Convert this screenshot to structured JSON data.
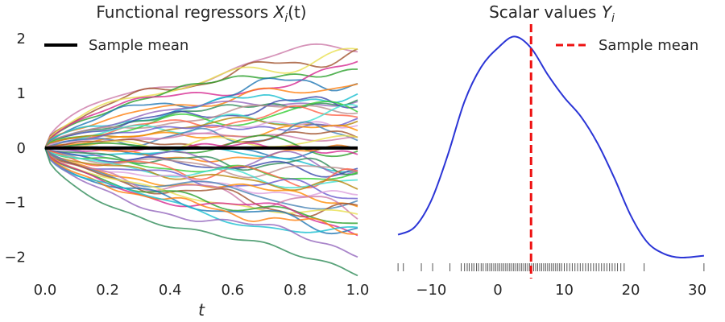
{
  "chart_data": [
    {
      "type": "line",
      "title": "Functional regressors X_i(t)",
      "title_parts": {
        "pre": "Functional regressors ",
        "var": "X",
        "sub": "i",
        "post": "(t)"
      },
      "xlabel": "t",
      "ylabel": "",
      "xlim": [
        0.0,
        1.0
      ],
      "ylim": [
        -2.45,
        2.15
      ],
      "x_ticks": [
        0.0,
        0.2,
        0.4,
        0.6,
        0.8,
        1.0
      ],
      "x_tick_labels": [
        "0.0",
        "0.2",
        "0.4",
        "0.6",
        "0.8",
        "1.0"
      ],
      "y_ticks": [
        -2,
        -1,
        0,
        1,
        2
      ],
      "y_tick_labels": [
        "−2",
        "−1",
        "0",
        "1",
        "2"
      ],
      "grid": false,
      "legend": {
        "entries": [
          "Sample mean"
        ],
        "placement": "top-left"
      },
      "mean_series": {
        "name": "Sample mean",
        "color": "#000000",
        "x": [
          0.0,
          1.0
        ],
        "y": [
          0.0,
          0.0
        ]
      },
      "series_count": 50,
      "series_end_values": [
        1.88,
        1.75,
        1.72,
        1.55,
        1.45,
        1.3,
        1.18,
        1.05,
        0.98,
        0.92,
        0.88,
        0.8,
        0.72,
        0.68,
        0.62,
        0.55,
        0.5,
        0.42,
        0.35,
        0.3,
        0.25,
        0.18,
        0.12,
        0.05,
        -0.02,
        -0.08,
        -0.15,
        -0.22,
        -0.28,
        -0.35,
        -0.42,
        -0.48,
        -0.55,
        -0.6,
        -0.68,
        -0.75,
        -0.82,
        -0.9,
        -0.98,
        -1.05,
        -1.12,
        -1.2,
        -1.28,
        -1.35,
        -1.42,
        -1.48,
        -1.52,
        -1.62,
        -1.82,
        -2.22
      ],
      "palette": [
        "#cc79a7",
        "#a0522d",
        "#e8e050",
        "#2ca02c",
        "#d62790",
        "#1f77b4",
        "#ff7f0e",
        "#17becf",
        "#9467bd",
        "#2e8b57",
        "#3949ab",
        "#bc8f8f",
        "#32cd32",
        "#ff6347",
        "#40e0d0",
        "#b8860b",
        "#6a5acd",
        "#dda0dd",
        "#ff8c00",
        "#4682b4"
      ]
    },
    {
      "type": "line",
      "title": "Scalar values Y_i",
      "title_parts": {
        "pre": "Scalar values ",
        "var": "Y",
        "sub": "i",
        "post": ""
      },
      "xlabel": "",
      "ylabel": "",
      "xlim": [
        -15.5,
        31.5
      ],
      "x_ticks": [
        -10,
        0,
        10,
        20,
        30
      ],
      "x_tick_labels": [
        "−10",
        "0",
        "10",
        "20",
        "30"
      ],
      "grid": false,
      "legend": {
        "entries": [
          "Sample mean"
        ],
        "placement": "top-right"
      },
      "density_color": "#2b35d6",
      "mean_line": {
        "name": "Sample mean",
        "x": 5.0,
        "color": "#ee1111",
        "style": "dashed"
      },
      "density_curve": {
        "x": [
          -15,
          -12.5,
          -10,
          -7.5,
          -5,
          -2.5,
          0,
          2.5,
          5,
          7.5,
          10,
          12.5,
          15,
          17.5,
          20,
          22.5,
          25,
          27.5,
          31
        ],
        "y": [
          0.006,
          0.008,
          0.015,
          0.027,
          0.041,
          0.05,
          0.055,
          0.058,
          0.055,
          0.048,
          0.042,
          0.037,
          0.03,
          0.021,
          0.011,
          0.004,
          0.001,
          0.0,
          0.0005
        ]
      },
      "rug_values": [
        -15.0,
        -14.2,
        -11.5,
        -9.8,
        -7.2,
        -5.5,
        -5.0,
        -4.6,
        -4.3,
        -3.9,
        -3.6,
        -3.2,
        -2.9,
        -2.5,
        -2.2,
        -1.8,
        -1.5,
        -1.2,
        -0.9,
        -0.6,
        -0.3,
        0.0,
        0.3,
        0.6,
        0.9,
        1.2,
        1.5,
        1.8,
        2.1,
        2.4,
        2.7,
        3.0,
        3.3,
        3.6,
        3.9,
        4.2,
        4.5,
        4.8,
        5.1,
        5.4,
        5.7,
        6.0,
        6.3,
        6.6,
        6.9,
        7.2,
        7.5,
        7.8,
        8.1,
        8.4,
        8.7,
        9.0,
        9.3,
        9.6,
        10.0,
        10.4,
        10.8,
        11.2,
        11.6,
        12.0,
        12.4,
        12.8,
        13.2,
        13.6,
        14.0,
        14.4,
        14.8,
        15.2,
        15.6,
        16.0,
        16.4,
        16.8,
        17.2,
        17.6,
        18.0,
        18.5,
        19.0,
        22.0,
        31.0
      ]
    }
  ]
}
